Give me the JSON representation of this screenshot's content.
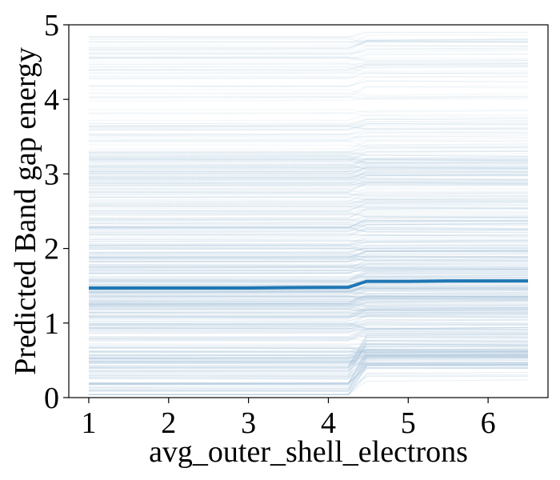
{
  "chart_data": {
    "type": "line",
    "title": "",
    "xlabel": "avg_outer_shell_electrons",
    "ylabel": "Predicted Band gap energy",
    "xlim": [
      0.75,
      6.75
    ],
    "ylim": [
      0,
      5
    ],
    "xticks": [
      1,
      2,
      3,
      4,
      5,
      6
    ],
    "yticks": [
      0,
      1,
      2,
      3,
      4,
      5
    ],
    "grid": false,
    "legend": "none",
    "ice_line_color": "#a9c4db",
    "average_line_color": "#1f77b4",
    "ice_x": [
      1.0,
      4.25,
      4.48,
      6.5
    ],
    "average_curve": {
      "x": [
        1.0,
        2.0,
        3.0,
        3.5,
        4.25,
        4.48,
        5.0,
        5.5,
        6.0,
        6.5
      ],
      "y": [
        1.47,
        1.47,
        1.47,
        1.475,
        1.48,
        1.56,
        1.56,
        1.565,
        1.565,
        1.565
      ]
    }
  }
}
